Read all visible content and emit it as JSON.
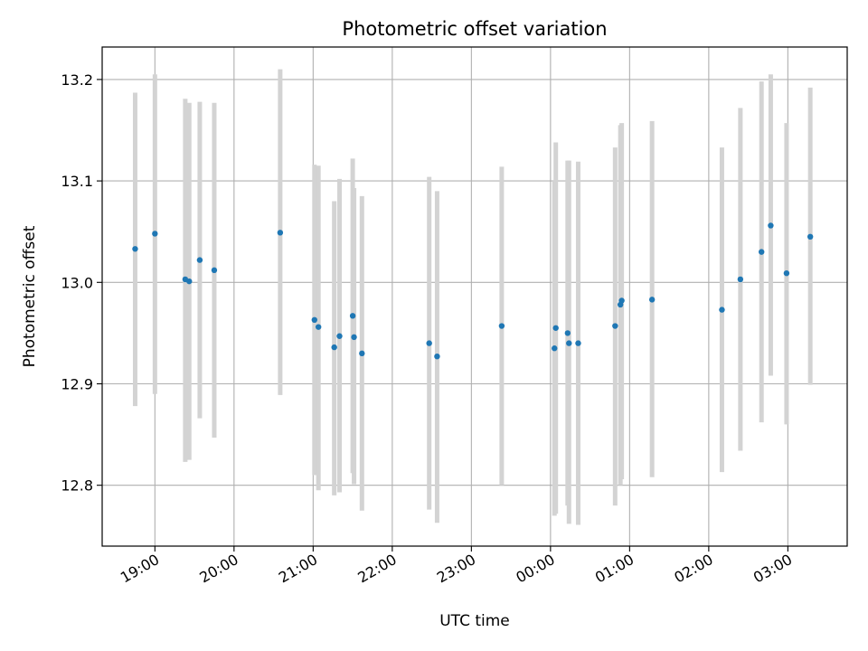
{
  "chart_data": {
    "type": "scatter",
    "title": "Photometric offset variation",
    "xlabel": "UTC time",
    "ylabel": "Photometric offset",
    "x_axis_type": "time",
    "x_start_date": "2024-01-01",
    "x_range": [
      "18:20",
      "27:45"
    ],
    "x_ticks": [
      "19:00",
      "20:00",
      "21:00",
      "22:00",
      "23:00",
      "00:00",
      "01:00",
      "02:00",
      "03:00"
    ],
    "y_ticks": [
      "12.8",
      "12.9",
      "13.0",
      "13.1",
      "13.2"
    ],
    "ylim": [
      12.74,
      13.232
    ],
    "grid": true,
    "colors": {
      "points": "#1f77b4",
      "error_bars": "#d3d3d3",
      "grid": "#b0b0b0"
    },
    "series": [
      {
        "points": [
          {
            "t": "18:45",
            "y": 13.033,
            "lo": 12.878,
            "hi": 13.187
          },
          {
            "t": "19:00",
            "y": 13.048,
            "lo": 12.89,
            "hi": 13.205
          },
          {
            "t": "19:23",
            "y": 13.003,
            "lo": 12.823,
            "hi": 13.181
          },
          {
            "t": "19:26",
            "y": 13.001,
            "lo": 12.825,
            "hi": 13.177
          },
          {
            "t": "19:34",
            "y": 13.022,
            "lo": 12.866,
            "hi": 13.178
          },
          {
            "t": "19:45",
            "y": 13.012,
            "lo": 12.847,
            "hi": 13.177
          },
          {
            "t": "20:35",
            "y": 13.049,
            "lo": 12.889,
            "hi": 13.21
          },
          {
            "t": "21:01",
            "y": 12.963,
            "lo": 12.81,
            "hi": 13.116
          },
          {
            "t": "21:04",
            "y": 12.956,
            "lo": 12.795,
            "hi": 13.115
          },
          {
            "t": "21:16",
            "y": 12.936,
            "lo": 12.79,
            "hi": 13.08
          },
          {
            "t": "21:20",
            "y": 12.947,
            "lo": 12.793,
            "hi": 13.102
          },
          {
            "t": "21:30",
            "y": 12.967,
            "lo": 12.812,
            "hi": 13.122
          },
          {
            "t": "21:31",
            "y": 12.946,
            "lo": 12.801,
            "hi": 13.093
          },
          {
            "t": "21:37",
            "y": 12.93,
            "lo": 12.775,
            "hi": 13.085
          },
          {
            "t": "22:28",
            "y": 12.94,
            "lo": 12.776,
            "hi": 13.104
          },
          {
            "t": "22:34",
            "y": 12.927,
            "lo": 12.763,
            "hi": 13.09
          },
          {
            "t": "23:23",
            "y": 12.957,
            "lo": 12.8,
            "hi": 13.114
          },
          {
            "t": "24:03",
            "y": 12.935,
            "lo": 12.77,
            "hi": 13.1
          },
          {
            "t": "24:04",
            "y": 12.955,
            "lo": 12.772,
            "hi": 13.138
          },
          {
            "t": "24:13",
            "y": 12.95,
            "lo": 12.78,
            "hi": 13.12
          },
          {
            "t": "24:14",
            "y": 12.94,
            "lo": 12.762,
            "hi": 13.12
          },
          {
            "t": "24:21",
            "y": 12.94,
            "lo": 12.761,
            "hi": 13.119
          },
          {
            "t": "24:49",
            "y": 12.957,
            "lo": 12.78,
            "hi": 13.133
          },
          {
            "t": "24:53",
            "y": 12.978,
            "lo": 12.8,
            "hi": 13.155
          },
          {
            "t": "24:54",
            "y": 12.982,
            "lo": 12.806,
            "hi": 13.157
          },
          {
            "t": "25:17",
            "y": 12.983,
            "lo": 12.808,
            "hi": 13.159
          },
          {
            "t": "26:10",
            "y": 12.973,
            "lo": 12.813,
            "hi": 13.133
          },
          {
            "t": "26:24",
            "y": 13.003,
            "lo": 12.834,
            "hi": 13.172
          },
          {
            "t": "26:40",
            "y": 13.03,
            "lo": 12.862,
            "hi": 13.198
          },
          {
            "t": "26:47",
            "y": 13.056,
            "lo": 12.908,
            "hi": 13.205
          },
          {
            "t": "26:59",
            "y": 13.009,
            "lo": 12.86,
            "hi": 13.157
          },
          {
            "t": "27:17",
            "y": 13.045,
            "lo": 12.899,
            "hi": 13.192
          }
        ]
      }
    ]
  }
}
